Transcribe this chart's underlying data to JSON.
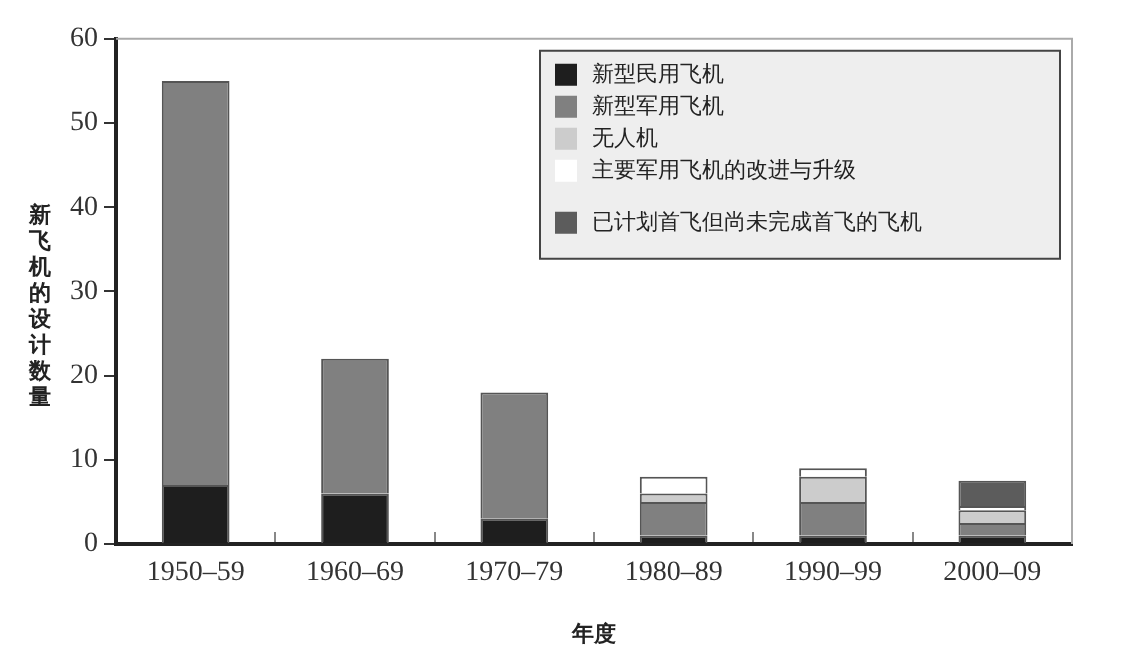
{
  "chart_data": {
    "type": "bar",
    "stacked": true,
    "xlabel": "年度",
    "ylabel": "新飞机的设计数量",
    "categories": [
      "1950–59",
      "1960–69",
      "1970–79",
      "1980–89",
      "1990–99",
      "2000–09"
    ],
    "series": [
      {
        "name": "新型民用飞机",
        "color": "#1e1e1e",
        "values": [
          7,
          6,
          3,
          1,
          1,
          1
        ]
      },
      {
        "name": "新型军用飞机",
        "color": "#808080",
        "values": [
          48,
          16,
          15,
          4,
          4,
          1.5
        ]
      },
      {
        "name": "无人机",
        "color": "#cccccc",
        "values": [
          0,
          0,
          0,
          1,
          3,
          1.5
        ]
      },
      {
        "name": "主要军用飞机的改进与升级",
        "color": "#ffffff",
        "values": [
          0,
          0,
          0,
          2,
          1,
          0.5
        ]
      },
      {
        "name": "已计划首飞但尚未完成首飞的飞机",
        "color": "#5c5c5c",
        "values": [
          0,
          0,
          0,
          0,
          0,
          3
        ]
      }
    ],
    "ylim": [
      0,
      60
    ],
    "yticks": [
      0,
      10,
      20,
      30,
      40,
      50,
      60
    ],
    "grid": false,
    "legend": "top right"
  }
}
